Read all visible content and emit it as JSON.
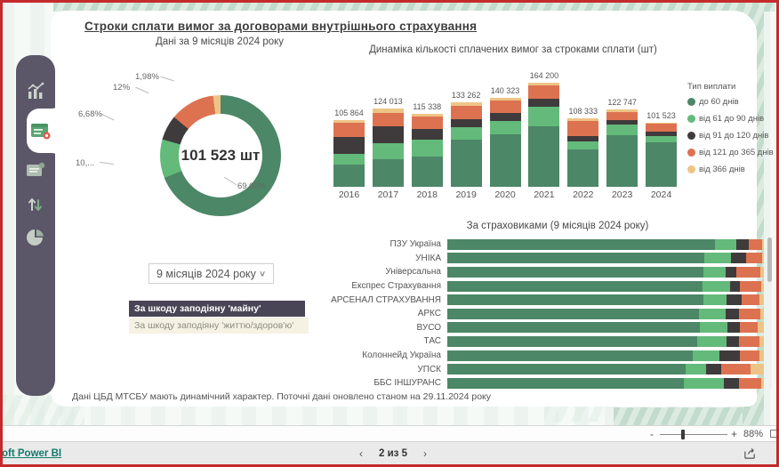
{
  "page": {
    "title": "Строки сплати вимог за договорами внутрішнього страхування",
    "footnote": "Дані ЦБД МТСБУ мають динамічний характер. Поточні дані оновлено станом на 29.11.2024 року"
  },
  "colors": {
    "series": [
      "#4c8767",
      "#63ba7a",
      "#3f3b3c",
      "#dd7251",
      "#eec486"
    ],
    "sidebar": "#5b5668",
    "accent_red": "#c52a2c",
    "brand_teal": "#137a6d"
  },
  "sidebar": {
    "items": [
      {
        "icon": "analytics-chart-icon",
        "active": false
      },
      {
        "icon": "calendar-report-icon",
        "active": true
      },
      {
        "icon": "document-note-icon",
        "active": false
      },
      {
        "icon": "sort-arrows-icon",
        "active": false
      },
      {
        "icon": "pie-chart-icon",
        "active": false
      }
    ]
  },
  "legend": {
    "title": "Тип виплати",
    "items": [
      "до 60 днів",
      "від 61 до 90 днів",
      "від 91 до 120 днів",
      "від 121 до 365 днів",
      "від 366 днів"
    ]
  },
  "filters": {
    "dropdown_value": "9 місяців 2024 року",
    "button_property": "За шкоду заподіяну 'майну'",
    "button_life": "За шкоду заподіяну 'життю/здоров'ю'"
  },
  "chart_data": [
    {
      "type": "pie",
      "title": "Дані за 9 місяців 2024 року",
      "center_label": "101 523 шт",
      "labels": [
        "69,02%",
        "10,...",
        "6,68%",
        "12%",
        "1,98%"
      ],
      "categories": [
        "до 60 днів",
        "від 61 до 90 днів",
        "від 91 до 120 днів",
        "від 121 до 365 днів",
        "від 366 днів"
      ],
      "values": [
        69.02,
        10.32,
        6.68,
        12.0,
        1.98
      ],
      "legend_position": "none"
    },
    {
      "type": "bar",
      "title": "Динаміка кількості сплачених вимог за строками сплати (шт)",
      "stacked": true,
      "categories": [
        "2016",
        "2017",
        "2018",
        "2019",
        "2020",
        "2021",
        "2022",
        "2023",
        "2024"
      ],
      "totals": [
        105864,
        124013,
        115338,
        133262,
        140323,
        164200,
        108333,
        122747,
        101523
      ],
      "total_labels": [
        "105 864",
        "124 013",
        "115 338",
        "133 262",
        "140 323",
        "164 200",
        "108 333",
        "122 747",
        "101 523"
      ],
      "series": [
        {
          "name": "до 60 днів",
          "values": [
            34900,
            43400,
            47900,
            74600,
            82200,
            95200,
            58500,
            81400,
            70071
          ]
        },
        {
          "name": "від 61 до 90 днів",
          "values": [
            16900,
            26000,
            27100,
            19100,
            22300,
            31400,
            12900,
            17400,
            10477
          ]
        },
        {
          "name": "від 91 до 120 днів",
          "values": [
            26500,
            26700,
            15800,
            12800,
            11600,
            11700,
            9200,
            6900,
            6782
          ]
        },
        {
          "name": "від 121 до 365 днів",
          "values": [
            22800,
            21100,
            19600,
            21900,
            19500,
            21200,
            23100,
            12900,
            12183
          ]
        },
        {
          "name": "від 366 днів",
          "values": [
            4764,
            6813,
            4938,
            4862,
            4723,
            4700,
            4633,
            4147,
            2010
          ]
        }
      ],
      "ylim": [
        0,
        164200
      ],
      "grid": false,
      "legend_position": "right"
    },
    {
      "type": "bar",
      "title": "За страховиками (9 місяців 2024 року)",
      "orientation": "horizontal",
      "stacked_percent": true,
      "categories": [
        "ПЗУ Україна",
        "УНІКА",
        "Універсальна",
        "Експрес Страхування",
        "АРСЕНАЛ СТРАХУВАННЯ",
        "АРКС",
        "ВУСО",
        "ТАС",
        "Колоннейд Україна",
        "УПСК",
        "ББС ІНШУРАНС"
      ],
      "series_names": [
        "до 60 днів",
        "від 61 до 90 днів",
        "від 91 до 120 днів",
        "від 121 до 365 днів",
        "від 366 днів"
      ],
      "rows_percent": [
        [
          84.6,
          6.6,
          4.1,
          4.1,
          0.6
        ],
        [
          81.3,
          8.3,
          4.9,
          4.9,
          0.6
        ],
        [
          81.0,
          6.8,
          3.5,
          7.7,
          1.0
        ],
        [
          80.5,
          8.8,
          3.1,
          6.8,
          0.8
        ],
        [
          80.8,
          7.3,
          5.0,
          5.4,
          1.5
        ],
        [
          79.4,
          8.5,
          4.2,
          6.7,
          1.2
        ],
        [
          79.9,
          8.5,
          4.0,
          5.7,
          1.9
        ],
        [
          79.0,
          9.2,
          4.0,
          6.3,
          1.5
        ],
        [
          77.4,
          8.5,
          6.6,
          6.0,
          1.5
        ],
        [
          75.2,
          6.6,
          4.7,
          9.2,
          4.3
        ],
        [
          74.7,
          12.7,
          4.7,
          7.0,
          0.9
        ]
      ],
      "xlim": [
        0,
        100
      ]
    }
  ],
  "bottombar": {
    "brand": "oft Power BI",
    "pager": {
      "prev": "‹",
      "label": "2 из 5",
      "next": "›"
    },
    "zoom": {
      "minus": "-",
      "plus": "+",
      "percent": "88%"
    }
  }
}
